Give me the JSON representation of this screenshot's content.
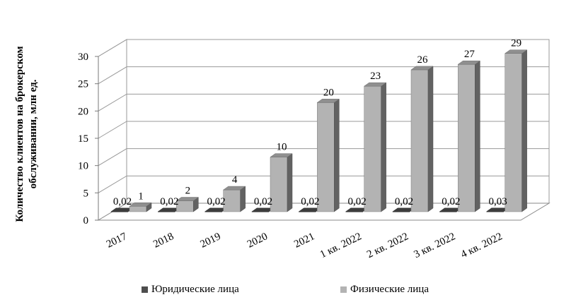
{
  "chart_data": {
    "type": "bar",
    "categories": [
      "2017",
      "2018",
      "2019",
      "2020",
      "2021",
      "1 кв. 2022",
      "2 кв. 2022",
      "3 кв. 2022",
      "4 кв. 2022"
    ],
    "series": [
      {
        "name": "Юридические лица",
        "values": [
          0.02,
          0.02,
          0.02,
          0.02,
          0.02,
          0.02,
          0.02,
          0.02,
          0.03
        ],
        "labels": [
          "0,02",
          "0,02",
          "0,02",
          "0,02",
          "0,02",
          "0,02",
          "0,02",
          "0,02",
          "0,03"
        ],
        "color": "#4d4d4d"
      },
      {
        "name": "Физические лица",
        "values": [
          1,
          2,
          4,
          10,
          20,
          23,
          26,
          27,
          29
        ],
        "labels": [
          "1",
          "2",
          "4",
          "10",
          "20",
          "23",
          "26",
          "27",
          "29"
        ],
        "color": "#b3b3b3"
      }
    ],
    "ylabel": "Количество клиентов на брокерском обслуживании, млн ед.",
    "yticks": [
      "0",
      "5",
      "10",
      "15",
      "20",
      "25",
      "30"
    ],
    "ylim": [
      0,
      30
    ],
    "grid": true,
    "legend": "bottom",
    "style": "3d"
  }
}
